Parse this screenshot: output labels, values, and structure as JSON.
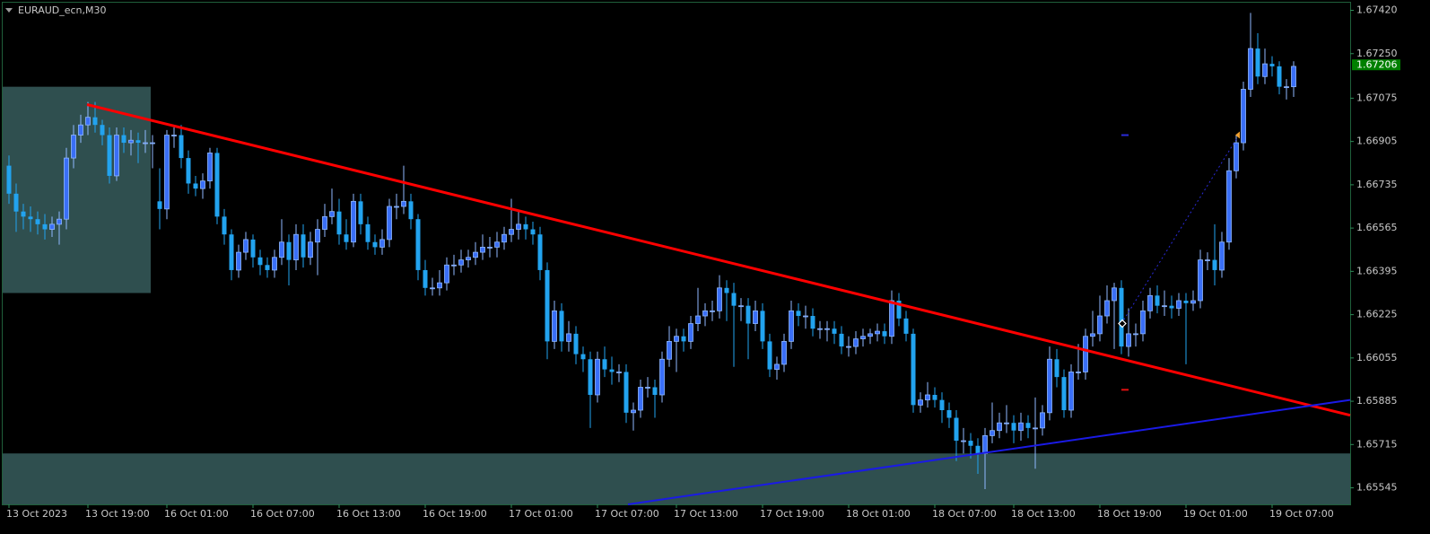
{
  "chart_data": {
    "type": "candlestick",
    "title": "EURAUD_ecn,M30",
    "up_color": "#3a6ff7",
    "up_edge": "#8fb8ff",
    "down_color": "#22a3ef",
    "ylim": [
      1.6548,
      1.6745
    ],
    "yticks": [
      {
        "value": 1.6742,
        "label": "1.67420"
      },
      {
        "value": 1.6725,
        "label": "1.67250"
      },
      1.67075,
      1.66905,
      1.66735,
      1.66565,
      1.66395,
      1.66225,
      1.66055,
      1.65885,
      1.65715,
      1.65545
    ],
    "last_price": 1.67206,
    "categories": [
      "13 Oct 2023",
      null,
      null,
      null,
      null,
      null,
      null,
      null,
      null,
      null,
      null,
      "13 Oct 19:00",
      null,
      null,
      null,
      null,
      null,
      null,
      null,
      null,
      null,
      null,
      "16 Oct 01:00",
      null,
      null,
      null,
      null,
      null,
      null,
      null,
      null,
      null,
      null,
      null,
      "16 Oct 07:00",
      null,
      null,
      null,
      null,
      null,
      null,
      null,
      null,
      null,
      null,
      null,
      "16 Oct 13:00",
      null,
      null,
      null,
      null,
      null,
      null,
      null,
      null,
      null,
      null,
      null,
      "16 Oct 19:00",
      null,
      null,
      null,
      null,
      null,
      null,
      null,
      null,
      null,
      null,
      null,
      "17 Oct 01:00",
      null,
      null,
      null,
      null,
      null,
      null,
      null,
      null,
      null,
      null,
      null,
      "17 Oct 07:00",
      null,
      null,
      null,
      null,
      null,
      null,
      null,
      null,
      null,
      null,
      "17 Oct 13:00",
      null,
      null,
      null,
      null,
      null,
      null,
      null,
      null,
      null,
      null,
      null,
      "17 Oct 19:00",
      null,
      null,
      null,
      null,
      null,
      null,
      null,
      null,
      null,
      null,
      null,
      "18 Oct 01:00",
      null,
      null,
      null,
      null,
      null,
      null,
      null,
      null,
      null,
      null,
      null,
      "18 Oct 07:00",
      null,
      null,
      null,
      null,
      null,
      null,
      null,
      null,
      null,
      null,
      "18 Oct 13:00",
      null,
      null,
      null,
      null,
      null,
      null,
      null,
      null,
      null,
      null,
      null,
      "18 Oct 19:00",
      null,
      null,
      null,
      null,
      null,
      null,
      null,
      null,
      null,
      null,
      null,
      "19 Oct 01:00",
      null,
      null,
      null,
      null,
      null,
      null,
      null,
      null,
      null,
      null,
      null,
      "19 Oct 07:00",
      null,
      null,
      null
    ],
    "values": [
      [
        1.6681,
        1.6685,
        1.6666,
        1.667
      ],
      [
        1.667,
        1.6674,
        1.6655,
        1.6663
      ],
      [
        1.6663,
        1.6666,
        1.6656,
        1.6661
      ],
      [
        1.6661,
        1.6665,
        1.6655,
        1.666
      ],
      [
        1.666,
        1.6663,
        1.6654,
        1.6658
      ],
      [
        1.6658,
        1.6662,
        1.6652,
        1.6656
      ],
      [
        1.6656,
        1.6661,
        1.6653,
        1.6658
      ],
      [
        1.6658,
        1.6663,
        1.665,
        1.666
      ],
      [
        1.666,
        1.6688,
        1.6656,
        1.6684
      ],
      [
        1.6684,
        1.6697,
        1.668,
        1.6693
      ],
      [
        1.6693,
        1.6701,
        1.669,
        1.6697
      ],
      [
        1.6697,
        1.6706,
        1.6693,
        1.67
      ],
      [
        1.67,
        1.6706,
        1.6694,
        1.6697
      ],
      [
        1.6697,
        1.6699,
        1.6689,
        1.6693
      ],
      [
        1.6693,
        1.6696,
        1.6674,
        1.6677
      ],
      [
        1.6677,
        1.6696,
        1.6675,
        1.6693
      ],
      [
        1.6693,
        1.6696,
        1.6686,
        1.669
      ],
      [
        1.669,
        1.6695,
        1.6685,
        1.6691
      ],
      [
        1.6691,
        1.6694,
        1.6682,
        1.669
      ],
      [
        1.669,
        1.6695,
        1.6686,
        1.669
      ],
      [
        1.669,
        1.6693,
        1.668,
        1.669
      ],
      [
        1.6667,
        1.668,
        1.6656,
        1.6664
      ],
      [
        1.6664,
        1.6695,
        1.666,
        1.6693
      ],
      [
        1.6693,
        1.6696,
        1.6688,
        1.6693
      ],
      [
        1.6693,
        1.6697,
        1.668,
        1.6684
      ],
      [
        1.6684,
        1.6687,
        1.667,
        1.6674
      ],
      [
        1.6674,
        1.6677,
        1.6669,
        1.6672
      ],
      [
        1.6672,
        1.6678,
        1.6668,
        1.6675
      ],
      [
        1.6675,
        1.6688,
        1.6672,
        1.6686
      ],
      [
        1.6686,
        1.6688,
        1.6658,
        1.6661
      ],
      [
        1.6661,
        1.6664,
        1.665,
        1.6654
      ],
      [
        1.6654,
        1.6656,
        1.6636,
        1.664
      ],
      [
        1.664,
        1.665,
        1.6637,
        1.6647
      ],
      [
        1.6647,
        1.6655,
        1.6644,
        1.6652
      ],
      [
        1.6652,
        1.6654,
        1.6641,
        1.6645
      ],
      [
        1.6645,
        1.6648,
        1.6638,
        1.6642
      ],
      [
        1.6642,
        1.6645,
        1.6637,
        1.664
      ],
      [
        1.664,
        1.6648,
        1.6637,
        1.6645
      ],
      [
        1.6645,
        1.666,
        1.6642,
        1.6651
      ],
      [
        1.6651,
        1.6654,
        1.6634,
        1.6644
      ],
      [
        1.6644,
        1.6658,
        1.664,
        1.6654
      ],
      [
        1.6654,
        1.6658,
        1.6641,
        1.6645
      ],
      [
        1.6645,
        1.6655,
        1.6642,
        1.6651
      ],
      [
        1.6651,
        1.666,
        1.6638,
        1.6656
      ],
      [
        1.6656,
        1.6666,
        1.6653,
        1.6661
      ],
      [
        1.6661,
        1.6672,
        1.6658,
        1.6663
      ],
      [
        1.6663,
        1.6668,
        1.665,
        1.6654
      ],
      [
        1.6654,
        1.666,
        1.6648,
        1.6651
      ],
      [
        1.6651,
        1.667,
        1.6649,
        1.6667
      ],
      [
        1.6667,
        1.667,
        1.6654,
        1.6658
      ],
      [
        1.6658,
        1.6661,
        1.6648,
        1.6651
      ],
      [
        1.6651,
        1.6654,
        1.6646,
        1.6649
      ],
      [
        1.6649,
        1.6656,
        1.6646,
        1.6652
      ],
      [
        1.6652,
        1.6668,
        1.6649,
        1.6665
      ],
      [
        1.6665,
        1.667,
        1.666,
        1.6665
      ],
      [
        1.6665,
        1.6681,
        1.6662,
        1.6667
      ],
      [
        1.6667,
        1.667,
        1.6656,
        1.666
      ],
      [
        1.666,
        1.6662,
        1.6636,
        1.664
      ],
      [
        1.664,
        1.6644,
        1.663,
        1.6633
      ],
      [
        1.6633,
        1.6637,
        1.663,
        1.6633
      ],
      [
        1.6633,
        1.664,
        1.663,
        1.6635
      ],
      [
        1.6635,
        1.6645,
        1.6632,
        1.6642
      ],
      [
        1.6642,
        1.6646,
        1.6638,
        1.6642
      ],
      [
        1.6642,
        1.6648,
        1.6639,
        1.6644
      ],
      [
        1.6644,
        1.6648,
        1.6641,
        1.6645
      ],
      [
        1.6645,
        1.6651,
        1.6642,
        1.6647
      ],
      [
        1.6647,
        1.6654,
        1.6644,
        1.6649
      ],
      [
        1.6649,
        1.6653,
        1.6645,
        1.6649
      ],
      [
        1.6649,
        1.6655,
        1.6645,
        1.6651
      ],
      [
        1.6651,
        1.6657,
        1.6648,
        1.6654
      ],
      [
        1.6654,
        1.6668,
        1.6651,
        1.6656
      ],
      [
        1.6656,
        1.6663,
        1.6652,
        1.6658
      ],
      [
        1.6658,
        1.6661,
        1.6652,
        1.6656
      ],
      [
        1.6656,
        1.6659,
        1.665,
        1.6654
      ],
      [
        1.6654,
        1.6657,
        1.6636,
        1.664
      ],
      [
        1.664,
        1.6643,
        1.6605,
        1.6612
      ],
      [
        1.6612,
        1.6628,
        1.6609,
        1.6624
      ],
      [
        1.6624,
        1.6627,
        1.6608,
        1.6612
      ],
      [
        1.6612,
        1.662,
        1.6608,
        1.6615
      ],
      [
        1.6615,
        1.6618,
        1.6603,
        1.6607
      ],
      [
        1.6607,
        1.661,
        1.66,
        1.6605
      ],
      [
        1.6605,
        1.6608,
        1.6578,
        1.6591
      ],
      [
        1.6591,
        1.6608,
        1.6588,
        1.6605
      ],
      [
        1.6605,
        1.661,
        1.6598,
        1.6601
      ],
      [
        1.6601,
        1.6606,
        1.6595,
        1.66
      ],
      [
        1.66,
        1.6603,
        1.6596,
        1.66
      ],
      [
        1.66,
        1.6603,
        1.658,
        1.6584
      ],
      [
        1.6584,
        1.6588,
        1.6577,
        1.6585
      ],
      [
        1.6585,
        1.6597,
        1.6582,
        1.6594
      ],
      [
        1.6594,
        1.6598,
        1.659,
        1.6594
      ],
      [
        1.6594,
        1.6597,
        1.6582,
        1.6591
      ],
      [
        1.6591,
        1.6608,
        1.6588,
        1.6605
      ],
      [
        1.6605,
        1.6618,
        1.6602,
        1.6612
      ],
      [
        1.6612,
        1.6617,
        1.66,
        1.6614
      ],
      [
        1.6614,
        1.6617,
        1.6608,
        1.6612
      ],
      [
        1.6612,
        1.6622,
        1.6609,
        1.6619
      ],
      [
        1.6619,
        1.6633,
        1.6616,
        1.6622
      ],
      [
        1.6622,
        1.6627,
        1.6618,
        1.6624
      ],
      [
        1.6624,
        1.6628,
        1.662,
        1.6624
      ],
      [
        1.6624,
        1.6638,
        1.6621,
        1.6633
      ],
      [
        1.6633,
        1.6636,
        1.662,
        1.6631
      ],
      [
        1.6631,
        1.6635,
        1.6602,
        1.6626
      ],
      [
        1.6626,
        1.6629,
        1.662,
        1.6626
      ],
      [
        1.6626,
        1.6629,
        1.6605,
        1.6619
      ],
      [
        1.6619,
        1.6628,
        1.6616,
        1.6624
      ],
      [
        1.6624,
        1.6627,
        1.6609,
        1.6612
      ],
      [
        1.6612,
        1.6615,
        1.6598,
        1.6601
      ],
      [
        1.6601,
        1.6606,
        1.6597,
        1.6603
      ],
      [
        1.6603,
        1.6615,
        1.66,
        1.6612
      ],
      [
        1.6612,
        1.6628,
        1.6609,
        1.6624
      ],
      [
        1.6624,
        1.6627,
        1.6618,
        1.6622
      ],
      [
        1.6622,
        1.6626,
        1.6617,
        1.6622
      ],
      [
        1.6622,
        1.6625,
        1.6614,
        1.6617
      ],
      [
        1.6617,
        1.662,
        1.6613,
        1.6617
      ],
      [
        1.6617,
        1.662,
        1.6612,
        1.6617
      ],
      [
        1.6617,
        1.662,
        1.6611,
        1.6615
      ],
      [
        1.6615,
        1.6618,
        1.6607,
        1.661
      ],
      [
        1.661,
        1.6614,
        1.6606,
        1.661
      ],
      [
        1.661,
        1.6616,
        1.6607,
        1.6613
      ],
      [
        1.6613,
        1.6617,
        1.661,
        1.6614
      ],
      [
        1.6614,
        1.6617,
        1.6611,
        1.6615
      ],
      [
        1.6615,
        1.6619,
        1.6612,
        1.6616
      ],
      [
        1.6616,
        1.6619,
        1.6611,
        1.6614
      ],
      [
        1.6614,
        1.6632,
        1.6611,
        1.6628
      ],
      [
        1.6628,
        1.6631,
        1.6618,
        1.6621
      ],
      [
        1.6621,
        1.6624,
        1.6612,
        1.6615
      ],
      [
        1.6615,
        1.6617,
        1.6584,
        1.6587
      ],
      [
        1.6587,
        1.6592,
        1.6584,
        1.6589
      ],
      [
        1.6589,
        1.6596,
        1.6586,
        1.6591
      ],
      [
        1.6591,
        1.6594,
        1.6586,
        1.6589
      ],
      [
        1.6589,
        1.6592,
        1.658,
        1.6585
      ],
      [
        1.6585,
        1.6588,
        1.6578,
        1.6582
      ],
      [
        1.6582,
        1.6585,
        1.6565,
        1.6573
      ],
      [
        1.6573,
        1.6578,
        1.6568,
        1.6573
      ],
      [
        1.6573,
        1.6576,
        1.6566,
        1.6571
      ],
      [
        1.6571,
        1.6574,
        1.656,
        1.6568
      ],
      [
        1.6568,
        1.6578,
        1.6554,
        1.6575
      ],
      [
        1.6575,
        1.6588,
        1.6572,
        1.6577
      ],
      [
        1.6577,
        1.6584,
        1.6574,
        1.658
      ],
      [
        1.658,
        1.6587,
        1.6576,
        1.658
      ],
      [
        1.658,
        1.6583,
        1.6572,
        1.6577
      ],
      [
        1.6577,
        1.6584,
        1.6573,
        1.658
      ],
      [
        1.658,
        1.6583,
        1.6574,
        1.6578
      ],
      [
        1.6578,
        1.659,
        1.6562,
        1.6578
      ],
      [
        1.6578,
        1.6587,
        1.6575,
        1.6584
      ],
      [
        1.6584,
        1.661,
        1.6581,
        1.6605
      ],
      [
        1.6605,
        1.6609,
        1.6594,
        1.6598
      ],
      [
        1.6598,
        1.6601,
        1.6582,
        1.6585
      ],
      [
        1.6585,
        1.6603,
        1.6582,
        1.66
      ],
      [
        1.66,
        1.6611,
        1.6597,
        1.66
      ],
      [
        1.66,
        1.6617,
        1.6597,
        1.6614
      ],
      [
        1.6614,
        1.6624,
        1.661,
        1.6615
      ],
      [
        1.6615,
        1.663,
        1.6612,
        1.6622
      ],
      [
        1.6622,
        1.6634,
        1.6619,
        1.6628
      ],
      [
        1.6628,
        1.6635,
        1.6609,
        1.6633
      ],
      [
        1.6633,
        1.6636,
        1.6607,
        1.661
      ],
      [
        1.661,
        1.6625,
        1.6606,
        1.6615
      ],
      [
        1.6615,
        1.6619,
        1.661,
        1.6615
      ],
      [
        1.6615,
        1.6628,
        1.6612,
        1.6624
      ],
      [
        1.6624,
        1.6633,
        1.6621,
        1.663
      ],
      [
        1.663,
        1.6634,
        1.6623,
        1.6626
      ],
      [
        1.6626,
        1.6632,
        1.6622,
        1.6626
      ],
      [
        1.6626,
        1.663,
        1.6621,
        1.6625
      ],
      [
        1.6625,
        1.6631,
        1.6622,
        1.6628
      ],
      [
        1.6628,
        1.6631,
        1.6603,
        1.6627
      ],
      [
        1.6627,
        1.6632,
        1.6624,
        1.6628
      ],
      [
        1.6628,
        1.6648,
        1.6625,
        1.6644
      ],
      [
        1.6644,
        1.6647,
        1.664,
        1.6644
      ],
      [
        1.6644,
        1.6658,
        1.6634,
        1.664
      ],
      [
        1.664,
        1.6655,
        1.6637,
        1.6651
      ],
      [
        1.6651,
        1.6684,
        1.6648,
        1.6679
      ],
      [
        1.6679,
        1.6693,
        1.6676,
        1.669
      ],
      [
        1.669,
        1.6714,
        1.6687,
        1.6711
      ],
      [
        1.6711,
        1.6741,
        1.6708,
        1.6727
      ],
      [
        1.6727,
        1.6733,
        1.6713,
        1.6716
      ],
      [
        1.6716,
        1.6727,
        1.6713,
        1.6721
      ],
      [
        1.6721,
        1.6724,
        1.6716,
        1.672
      ],
      [
        1.672,
        1.6722,
        1.6709,
        1.6712
      ],
      [
        1.6712,
        1.6715,
        1.6707,
        1.6712
      ],
      [
        1.6712,
        1.6722,
        1.6708,
        1.672
      ]
    ],
    "zones": [
      {
        "color": "#2f4f4f",
        "top": 1.6712,
        "bottom": 1.6631
      },
      {
        "color": "#2f4f4f",
        "top": 1.6568,
        "bottom": 1.6548
      }
    ],
    "trendlines": [
      {
        "color": "#ff0000",
        "from": 1.6705,
        "to": 1.6583
      },
      {
        "color": "#1a1ae6",
        "from": 1.6548,
        "to": 1.6589
      }
    ],
    "trade": {
      "entry": 1.6619,
      "exit": 1.6693,
      "take_profit": 1.6693,
      "stop_loss": 1.6593
    }
  }
}
